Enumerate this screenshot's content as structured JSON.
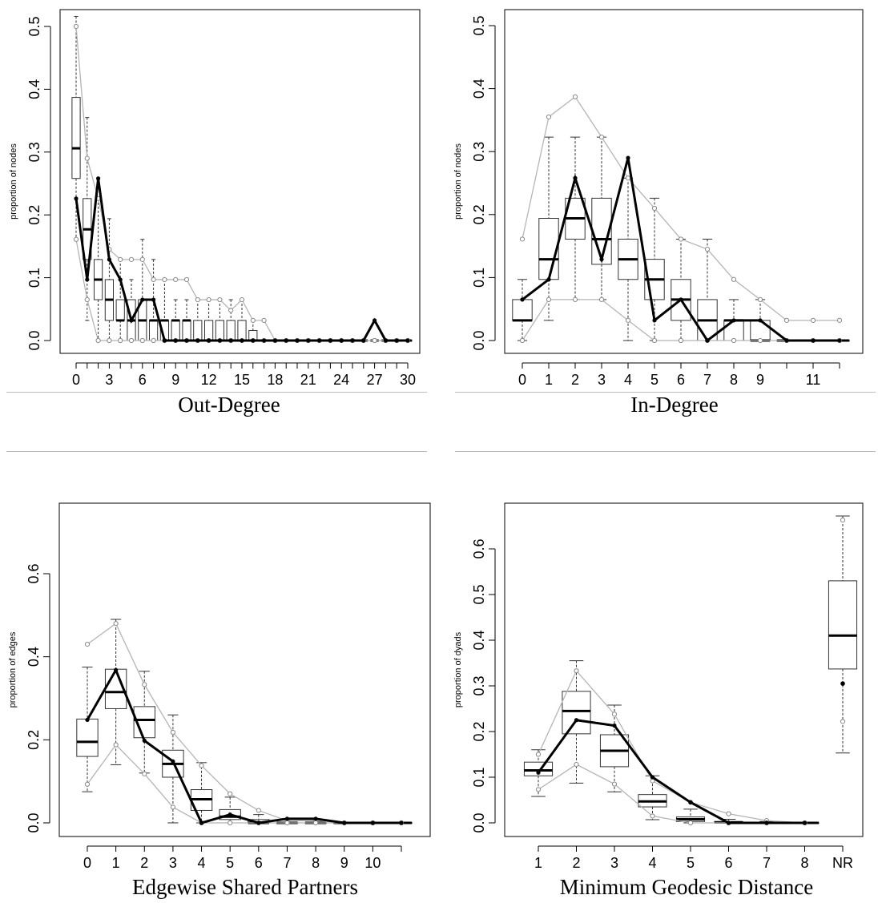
{
  "chart_data": [
    {
      "type": "boxplot",
      "caption": "Out-Degree",
      "ylabel": "proportion of nodes",
      "ylim": [
        0,
        0.5
      ],
      "yticks": [
        "0.0",
        "0.1",
        "0.2",
        "0.3",
        "0.4",
        "0.5"
      ],
      "x": [
        0,
        1,
        2,
        3,
        4,
        5,
        6,
        7,
        8,
        9,
        10,
        11,
        12,
        13,
        14,
        15,
        16,
        17,
        18,
        19,
        20,
        21,
        22,
        23,
        24,
        25,
        26,
        27,
        28,
        29,
        30
      ],
      "xtick_labels": [
        "0",
        "3",
        "6",
        "9",
        "12",
        "15",
        "18",
        "21",
        "24",
        "27",
        "30"
      ],
      "boxes": [
        {
          "x": 0,
          "q1": 0.258,
          "median": 0.306,
          "q3": 0.387,
          "low": 0.161,
          "high": 0.516
        },
        {
          "x": 1,
          "q1": 0.129,
          "median": 0.177,
          "q3": 0.226,
          "low": 0.032,
          "high": 0.355
        },
        {
          "x": 2,
          "q1": 0.065,
          "median": 0.097,
          "q3": 0.129,
          "low": 0.0,
          "high": 0.226
        },
        {
          "x": 3,
          "q1": 0.032,
          "median": 0.065,
          "q3": 0.097,
          "low": 0.0,
          "high": 0.194
        },
        {
          "x": 4,
          "q1": 0.032,
          "median": 0.032,
          "q3": 0.065,
          "low": 0.0,
          "high": 0.129
        },
        {
          "x": 5,
          "q1": 0.0,
          "median": 0.032,
          "q3": 0.065,
          "low": 0.0,
          "high": 0.097
        },
        {
          "x": 6,
          "q1": 0.0,
          "median": 0.032,
          "q3": 0.065,
          "low": 0.0,
          "high": 0.161
        },
        {
          "x": 7,
          "q1": 0.0,
          "median": 0.032,
          "q3": 0.032,
          "low": 0.0,
          "high": 0.129
        },
        {
          "x": 8,
          "q1": 0.0,
          "median": 0.032,
          "q3": 0.032,
          "low": 0.0,
          "high": 0.097
        },
        {
          "x": 9,
          "q1": 0.0,
          "median": 0.032,
          "q3": 0.032,
          "low": 0.0,
          "high": 0.065
        },
        {
          "x": 10,
          "q1": 0.0,
          "median": 0.032,
          "q3": 0.032,
          "low": 0.0,
          "high": 0.065
        },
        {
          "x": 11,
          "q1": 0.0,
          "median": 0.0,
          "q3": 0.032,
          "low": 0.0,
          "high": 0.065
        },
        {
          "x": 12,
          "q1": 0.0,
          "median": 0.0,
          "q3": 0.032,
          "low": 0.0,
          "high": 0.065
        },
        {
          "x": 13,
          "q1": 0.0,
          "median": 0.0,
          "q3": 0.032,
          "low": 0.0,
          "high": 0.065
        },
        {
          "x": 14,
          "q1": 0.0,
          "median": 0.0,
          "q3": 0.032,
          "low": 0.0,
          "high": 0.065
        },
        {
          "x": 15,
          "q1": 0.0,
          "median": 0.0,
          "q3": 0.032,
          "low": 0.0,
          "high": 0.065
        },
        {
          "x": 16,
          "q1": 0.0,
          "median": 0.0,
          "q3": 0.016,
          "low": 0.0,
          "high": 0.032
        },
        {
          "x": 17,
          "q1": 0.0,
          "median": 0.0,
          "q3": 0.0,
          "low": 0.0,
          "high": 0.0
        },
        {
          "x": 18,
          "q1": 0.0,
          "median": 0.0,
          "q3": 0.0,
          "low": 0.0,
          "high": 0.0
        },
        {
          "x": 19,
          "q1": 0.0,
          "median": 0.0,
          "q3": 0.0,
          "low": 0.0,
          "high": 0.0
        },
        {
          "x": 20,
          "q1": 0.0,
          "median": 0.0,
          "q3": 0.0,
          "low": 0.0,
          "high": 0.0
        },
        {
          "x": 21,
          "q1": 0.0,
          "median": 0.0,
          "q3": 0.0,
          "low": 0.0,
          "high": 0.0
        },
        {
          "x": 22,
          "q1": 0.0,
          "median": 0.0,
          "q3": 0.0,
          "low": 0.0,
          "high": 0.0
        },
        {
          "x": 23,
          "q1": 0.0,
          "median": 0.0,
          "q3": 0.0,
          "low": 0.0,
          "high": 0.0
        },
        {
          "x": 24,
          "q1": 0.0,
          "median": 0.0,
          "q3": 0.0,
          "low": 0.0,
          "high": 0.0
        },
        {
          "x": 25,
          "q1": 0.0,
          "median": 0.0,
          "q3": 0.0,
          "low": 0.0,
          "high": 0.0
        },
        {
          "x": 26,
          "q1": 0.0,
          "median": 0.0,
          "q3": 0.0,
          "low": 0.0,
          "high": 0.0
        },
        {
          "x": 27,
          "q1": 0.0,
          "median": 0.0,
          "q3": 0.0,
          "low": 0.0,
          "high": 0.0
        },
        {
          "x": 28,
          "q1": 0.0,
          "median": 0.0,
          "q3": 0.0,
          "low": 0.0,
          "high": 0.0
        },
        {
          "x": 29,
          "q1": 0.0,
          "median": 0.0,
          "q3": 0.0,
          "low": 0.0,
          "high": 0.0
        },
        {
          "x": 30,
          "q1": 0.0,
          "median": 0.0,
          "q3": 0.0,
          "low": 0.0,
          "high": 0.0
        }
      ],
      "observed": [
        0.226,
        0.097,
        0.258,
        0.129,
        0.097,
        0.032,
        0.065,
        0.065,
        0.0,
        0.0,
        0.0,
        0.0,
        0.0,
        0.0,
        0.0,
        0.0,
        0.0,
        0.0,
        0.0,
        0.0,
        0.0,
        0.0,
        0.0,
        0.0,
        0.0,
        0.0,
        0.0,
        0.032,
        0.0,
        0.0,
        0.0
      ],
      "upper_band": [
        0.5,
        0.29,
        0.226,
        0.145,
        0.129,
        0.129,
        0.129,
        0.097,
        0.097,
        0.097,
        0.097,
        0.065,
        0.065,
        0.065,
        0.048,
        0.065,
        0.032,
        0.032,
        0.0,
        0.0,
        0.0,
        0.0,
        0.0,
        0.0,
        0.0,
        0.0,
        0.0,
        0.0,
        0.0,
        0.0,
        0.0
      ],
      "lower_band": [
        0.161,
        0.065,
        0.0,
        0.0,
        0.0,
        0.0,
        0.0,
        0.0,
        0.0,
        0.0,
        0.0,
        0.0,
        0.0,
        0.0,
        0.0,
        0.0,
        0.0,
        0.0,
        0.0,
        0.0,
        0.0,
        0.0,
        0.0,
        0.0,
        0.0,
        0.0,
        0.0,
        0.0,
        0.0,
        0.0,
        0.0
      ]
    },
    {
      "type": "boxplot",
      "caption": "In-Degree",
      "ylabel": "proportion of nodes",
      "ylim": [
        0,
        0.5
      ],
      "yticks": [
        "0.0",
        "0.1",
        "0.2",
        "0.3",
        "0.4",
        "0.5"
      ],
      "x": [
        0,
        1,
        2,
        3,
        4,
        5,
        6,
        7,
        8,
        9,
        10,
        11,
        12
      ],
      "xtick_labels": [
        "0",
        "1",
        "2",
        "3",
        "4",
        "5",
        "6",
        "7",
        "8",
        "9",
        "11"
      ],
      "boxes": [
        {
          "x": 0,
          "q1": 0.032,
          "median": 0.032,
          "q3": 0.065,
          "low": 0.0,
          "high": 0.097
        },
        {
          "x": 1,
          "q1": 0.097,
          "median": 0.129,
          "q3": 0.194,
          "low": 0.032,
          "high": 0.323
        },
        {
          "x": 2,
          "q1": 0.161,
          "median": 0.194,
          "q3": 0.226,
          "low": 0.065,
          "high": 0.323
        },
        {
          "x": 3,
          "q1": 0.121,
          "median": 0.161,
          "q3": 0.226,
          "low": 0.065,
          "high": 0.323
        },
        {
          "x": 4,
          "q1": 0.097,
          "median": 0.129,
          "q3": 0.161,
          "low": 0.0,
          "high": 0.258
        },
        {
          "x": 5,
          "q1": 0.065,
          "median": 0.097,
          "q3": 0.129,
          "low": 0.0,
          "high": 0.226
        },
        {
          "x": 6,
          "q1": 0.032,
          "median": 0.065,
          "q3": 0.097,
          "low": 0.0,
          "high": 0.161
        },
        {
          "x": 7,
          "q1": 0.0,
          "median": 0.032,
          "q3": 0.065,
          "low": 0.0,
          "high": 0.161
        },
        {
          "x": 8,
          "q1": 0.0,
          "median": 0.032,
          "q3": 0.032,
          "low": 0.0,
          "high": 0.065
        },
        {
          "x": 9,
          "q1": 0.0,
          "median": 0.0,
          "q3": 0.032,
          "low": 0.0,
          "high": 0.065
        },
        {
          "x": 10,
          "q1": 0.0,
          "median": 0.0,
          "q3": 0.0,
          "low": 0.0,
          "high": 0.0
        },
        {
          "x": 11,
          "q1": 0.0,
          "median": 0.0,
          "q3": 0.0,
          "low": 0.0,
          "high": 0.0
        },
        {
          "x": 12,
          "q1": 0.0,
          "median": 0.0,
          "q3": 0.0,
          "low": 0.0,
          "high": 0.0
        }
      ],
      "observed": [
        0.065,
        0.097,
        0.258,
        0.129,
        0.29,
        0.032,
        0.065,
        0.0,
        0.032,
        0.032,
        0.0,
        0.0,
        0.0
      ],
      "upper_band": [
        0.161,
        0.355,
        0.387,
        0.323,
        0.258,
        0.21,
        0.161,
        0.145,
        0.097,
        0.065,
        0.032,
        0.032,
        0.032
      ],
      "lower_band": [
        0.0,
        0.065,
        0.065,
        0.065,
        0.032,
        0.0,
        0.0,
        0.0,
        0.0,
        0.0,
        0.0,
        0.0,
        0.0
      ]
    },
    {
      "type": "boxplot",
      "caption": "Edgewise Shared Partners",
      "ylabel": "proportion of edges",
      "ylim": [
        0,
        0.7
      ],
      "yticks": [
        "0.0",
        "0.2",
        "0.4",
        "0.6"
      ],
      "x": [
        0,
        1,
        2,
        3,
        4,
        5,
        6,
        7,
        8,
        9,
        10,
        11
      ],
      "xtick_labels": [
        "0",
        "1",
        "2",
        "3",
        "4",
        "5",
        "6",
        "7",
        "8",
        "9",
        "10"
      ],
      "boxes": [
        {
          "x": 0,
          "q1": 0.16,
          "median": 0.195,
          "q3": 0.25,
          "low": 0.075,
          "high": 0.375
        },
        {
          "x": 1,
          "q1": 0.275,
          "median": 0.315,
          "q3": 0.37,
          "low": 0.14,
          "high": 0.49
        },
        {
          "x": 2,
          "q1": 0.205,
          "median": 0.248,
          "q3": 0.28,
          "low": 0.12,
          "high": 0.365
        },
        {
          "x": 3,
          "q1": 0.11,
          "median": 0.142,
          "q3": 0.175,
          "low": 0.0,
          "high": 0.26
        },
        {
          "x": 4,
          "q1": 0.03,
          "median": 0.057,
          "q3": 0.08,
          "low": 0.0,
          "high": 0.145
        },
        {
          "x": 5,
          "q1": 0.008,
          "median": 0.015,
          "q3": 0.032,
          "low": 0.0,
          "high": 0.062
        },
        {
          "x": 6,
          "q1": 0.0,
          "median": 0.0,
          "q3": 0.008,
          "low": 0.0,
          "high": 0.02
        },
        {
          "x": 7,
          "q1": 0.0,
          "median": 0.0,
          "q3": 0.0,
          "low": 0.0,
          "high": 0.01
        },
        {
          "x": 8,
          "q1": 0.0,
          "median": 0.0,
          "q3": 0.0,
          "low": 0.0,
          "high": 0.005
        },
        {
          "x": 9,
          "q1": 0.0,
          "median": 0.0,
          "q3": 0.0,
          "low": 0.0,
          "high": 0.0
        },
        {
          "x": 10,
          "q1": 0.0,
          "median": 0.0,
          "q3": 0.0,
          "low": 0.0,
          "high": 0.0
        },
        {
          "x": 11,
          "q1": 0.0,
          "median": 0.0,
          "q3": 0.0,
          "low": 0.0,
          "high": 0.0
        }
      ],
      "observed": [
        0.248,
        0.368,
        0.198,
        0.148,
        0.0,
        0.02,
        0.0,
        0.01,
        0.01,
        0.0,
        0.0,
        0.0
      ],
      "upper_band": [
        0.43,
        0.48,
        0.333,
        0.218,
        0.138,
        0.07,
        0.03,
        0.005,
        0.005,
        0.0,
        0.0,
        0.0
      ],
      "lower_band": [
        0.093,
        0.188,
        0.118,
        0.038,
        0.0,
        0.0,
        0.0,
        0.0,
        0.0,
        0.0,
        0.0,
        0.0
      ]
    },
    {
      "type": "boxplot",
      "caption": "Minimum Geodesic Distance",
      "ylabel": "proportion of dyads",
      "ylim": [
        0,
        0.68
      ],
      "yticks": [
        "0.0",
        "0.1",
        "0.2",
        "0.3",
        "0.4",
        "0.5",
        "0.6"
      ],
      "x": [
        1,
        2,
        3,
        4,
        5,
        6,
        7,
        8,
        9
      ],
      "xtick_labels": [
        "1",
        "2",
        "3",
        "4",
        "5",
        "6",
        "7",
        "8",
        "NR"
      ],
      "boxes": [
        {
          "x": 1,
          "q1": 0.103,
          "median": 0.115,
          "q3": 0.133,
          "low": 0.058,
          "high": 0.16
        },
        {
          "x": 2,
          "q1": 0.195,
          "median": 0.245,
          "q3": 0.288,
          "low": 0.087,
          "high": 0.355
        },
        {
          "x": 3,
          "q1": 0.123,
          "median": 0.158,
          "q3": 0.193,
          "low": 0.068,
          "high": 0.258
        },
        {
          "x": 4,
          "q1": 0.035,
          "median": 0.047,
          "q3": 0.062,
          "low": 0.007,
          "high": 0.103
        },
        {
          "x": 5,
          "q1": 0.003,
          "median": 0.008,
          "q3": 0.013,
          "low": 0.0,
          "high": 0.03
        },
        {
          "x": 6,
          "q1": 0.0,
          "median": 0.001,
          "q3": 0.003,
          "low": 0.0,
          "high": 0.008
        },
        {
          "x": 7,
          "q1": 0.0,
          "median": 0.0,
          "q3": 0.0,
          "low": 0.0,
          "high": 0.003
        },
        {
          "x": 8,
          "q1": 0.0,
          "median": 0.0,
          "q3": 0.0,
          "low": 0.0,
          "high": 0.0
        },
        {
          "x": 9,
          "q1": 0.337,
          "median": 0.41,
          "q3": 0.53,
          "low": 0.153,
          "high": 0.672
        }
      ],
      "observed": [
        0.11,
        0.225,
        0.213,
        0.1,
        0.045,
        0.0,
        0.0,
        0.0
      ],
      "observed_nr": 0.305,
      "upper_band": [
        0.15,
        0.333,
        0.238,
        0.092,
        0.045,
        0.02,
        0.005,
        0.0
      ],
      "lower_band": [
        0.073,
        0.128,
        0.085,
        0.015,
        0.0,
        0.0,
        0.0,
        0.0
      ],
      "band_nr": [
        0.663,
        0.222
      ]
    }
  ]
}
